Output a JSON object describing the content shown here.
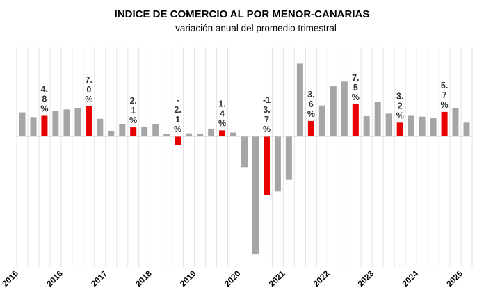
{
  "chart_data": {
    "type": "bar",
    "title": "INDICE DE COMERCIO AL POR MENOR-CANARIAS",
    "subtitle": "variación anual del promedio trimestral",
    "x_tick_labels": [
      "2015",
      "2016",
      "2017",
      "2018",
      "2019",
      "2020",
      "2021",
      "2022",
      "2023",
      "2024",
      "2025"
    ],
    "values": [
      5.6,
      4.5,
      4.8,
      5.9,
      6.3,
      6.6,
      7.0,
      4.1,
      1.2,
      2.8,
      2.1,
      2.3,
      2.8,
      0.6,
      -2.1,
      0.7,
      0.5,
      1.8,
      1.4,
      0.9,
      -7.2,
      -27.5,
      -13.7,
      -12.9,
      -10.2,
      17.0,
      3.6,
      7.2,
      11.8,
      12.8,
      7.5,
      4.7,
      8.0,
      5.3,
      3.2,
      4.8,
      4.6,
      4.3,
      5.7,
      6.6,
      3.2
    ],
    "highlight_color": "#e60000",
    "base_color": "#a6a6a6",
    "data_labels": [
      {
        "index": 2,
        "text": "4.8%",
        "lines": [
          "4.",
          "8",
          "%"
        ]
      },
      {
        "index": 6,
        "text": "7.0%",
        "lines": [
          "7.",
          "0",
          "%"
        ]
      },
      {
        "index": 10,
        "text": "2.1%",
        "lines": [
          "2.",
          "1",
          "%"
        ]
      },
      {
        "index": 14,
        "text": "-2.1%",
        "lines": [
          "-",
          "2.",
          "1",
          "%"
        ]
      },
      {
        "index": 18,
        "text": "1.4%",
        "lines": [
          "1.",
          "4",
          "%"
        ]
      },
      {
        "index": 22,
        "text": "-13.7%",
        "lines": [
          "-1",
          "3.",
          "7",
          "%"
        ]
      },
      {
        "index": 26,
        "text": "3.6%",
        "lines": [
          "3.",
          "6",
          "%"
        ]
      },
      {
        "index": 30,
        "text": "7.5%",
        "lines": [
          "7.",
          "5",
          "%"
        ]
      },
      {
        "index": 34,
        "text": "3.2%",
        "lines": [
          "3.",
          "2",
          "%"
        ]
      },
      {
        "index": 38,
        "text": "5.7%",
        "lines": [
          "5.",
          "7",
          "%"
        ]
      }
    ],
    "ylim": [
      -28,
      17
    ],
    "grid": "vertical",
    "legend": "none"
  }
}
